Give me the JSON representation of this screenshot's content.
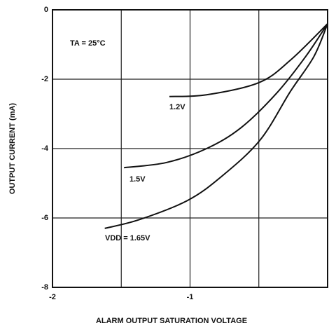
{
  "chart_data": {
    "type": "line",
    "xlabel": "ALARM OUTPUT SATURATION VOLTAGE",
    "ylabel": "OUTPUT CURRENT (mA)",
    "annotation": "TA = 25°C",
    "xlim": [
      -2,
      0
    ],
    "ylim": [
      -8,
      0
    ],
    "xticks": [
      -2,
      -1
    ],
    "xminor": [
      -1.5,
      -0.5,
      0
    ],
    "yticks": [
      0,
      -2,
      -4,
      -6,
      -8
    ],
    "grid": true,
    "series": [
      {
        "name": "1.2V",
        "color": "#111111",
        "x": [
          -1.15,
          -0.88,
          -0.5,
          -0.27,
          0
        ],
        "values": [
          -2.5,
          -2.45,
          -2.1,
          -1.45,
          -0.4
        ]
      },
      {
        "name": "1.5V",
        "color": "#111111",
        "x": [
          -1.48,
          -1.17,
          -0.88,
          -0.63,
          -0.37,
          -0.16,
          0
        ],
        "values": [
          -4.55,
          -4.4,
          -4.0,
          -3.4,
          -2.4,
          -1.35,
          -0.4
        ]
      },
      {
        "name": "VDD = 1.65V",
        "color": "#111111",
        "x": [
          -1.62,
          -1.37,
          -1.02,
          -0.77,
          -0.49,
          -0.27,
          -0.1,
          0
        ],
        "values": [
          -6.3,
          -6.05,
          -5.5,
          -4.8,
          -3.75,
          -2.35,
          -1.35,
          -0.4
        ]
      }
    ]
  }
}
